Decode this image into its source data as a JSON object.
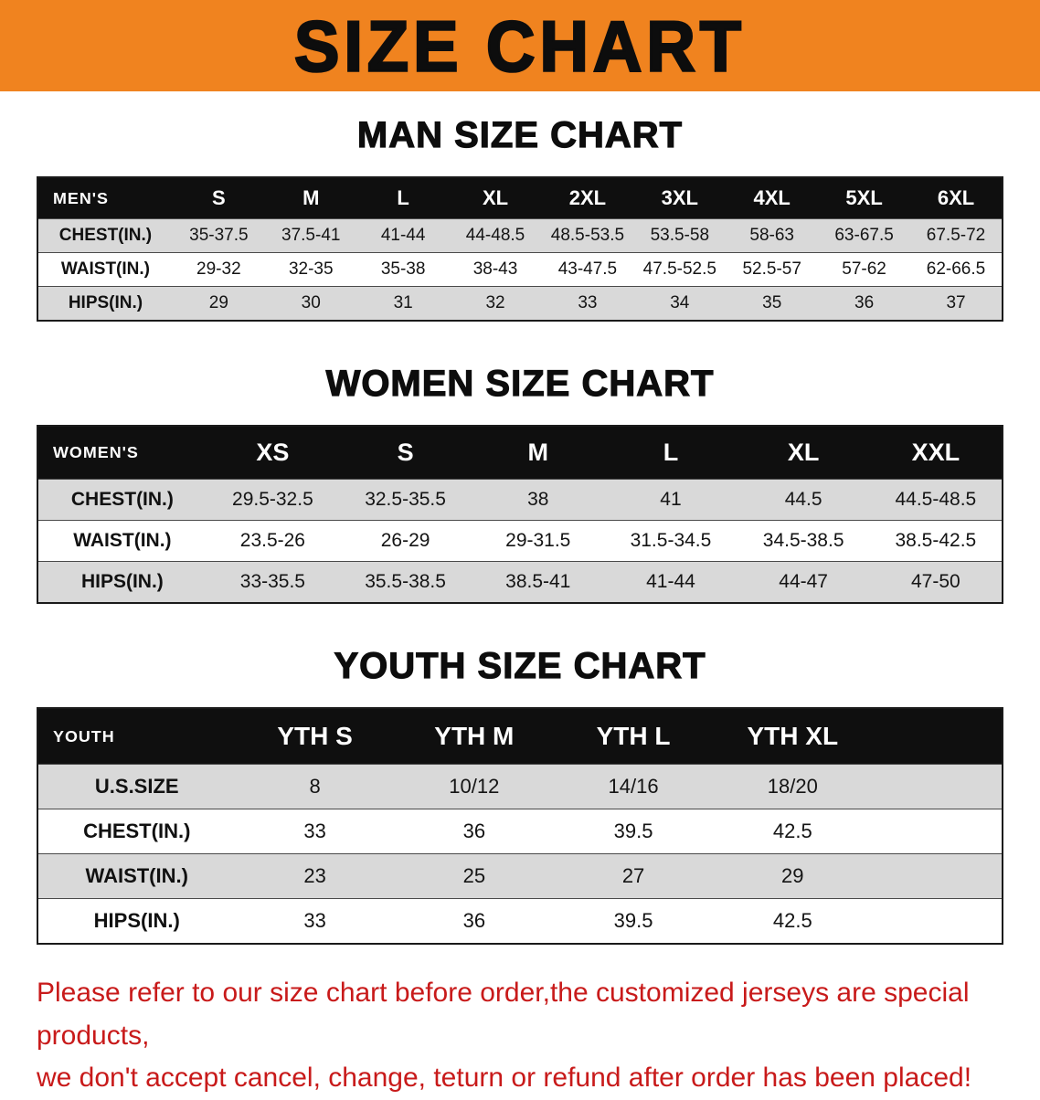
{
  "banner": {
    "title": "SIZE CHART"
  },
  "colors": {
    "banner_bg": "#F0831F",
    "header_bg": "#0f0f0f",
    "stripe": "#d9d9d9",
    "footer_text": "#c81a1a"
  },
  "sections": [
    {
      "heading": "MAN SIZE CHART",
      "table": {
        "label": "MEN'S",
        "columns": [
          "S",
          "M",
          "L",
          "XL",
          "2XL",
          "3XL",
          "4XL",
          "5XL",
          "6XL"
        ],
        "rows": [
          {
            "label": "CHEST(IN.)",
            "values": [
              "35-37.5",
              "37.5-41",
              "41-44",
              "44-48.5",
              "48.5-53.5",
              "53.5-58",
              "58-63",
              "63-67.5",
              "67.5-72"
            ]
          },
          {
            "label": "WAIST(IN.)",
            "values": [
              "29-32",
              "32-35",
              "35-38",
              "38-43",
              "43-47.5",
              "47.5-52.5",
              "52.5-57",
              "57-62",
              "62-66.5"
            ]
          },
          {
            "label": "HIPS(IN.)",
            "values": [
              "29",
              "30",
              "31",
              "32",
              "33",
              "34",
              "35",
              "36",
              "37"
            ]
          }
        ]
      }
    },
    {
      "heading": "WOMEN SIZE CHART",
      "table": {
        "label": "WOMEN'S",
        "columns": [
          "XS",
          "S",
          "M",
          "L",
          "XL",
          "XXL"
        ],
        "rows": [
          {
            "label": "CHEST(IN.)",
            "values": [
              "29.5-32.5",
              "32.5-35.5",
              "38",
              "41",
              "44.5",
              "44.5-48.5"
            ]
          },
          {
            "label": "WAIST(IN.)",
            "values": [
              "23.5-26",
              "26-29",
              "29-31.5",
              "31.5-34.5",
              "34.5-38.5",
              "38.5-42.5"
            ]
          },
          {
            "label": "HIPS(IN.)",
            "values": [
              "33-35.5",
              "35.5-38.5",
              "38.5-41",
              "41-44",
              "44-47",
              "47-50"
            ]
          }
        ]
      }
    },
    {
      "heading": "YOUTH SIZE CHART",
      "table": {
        "label": "YOUTH",
        "columns": [
          "YTH S",
          "YTH M",
          "YTH L",
          "YTH XL"
        ],
        "rows": [
          {
            "label": "U.S.SIZE",
            "values": [
              "8",
              "10/12",
              "14/16",
              "18/20"
            ]
          },
          {
            "label": "CHEST(IN.)",
            "values": [
              "33",
              "36",
              "39.5",
              "42.5"
            ]
          },
          {
            "label": "WAIST(IN.)",
            "values": [
              "23",
              "25",
              "27",
              "29"
            ]
          },
          {
            "label": "HIPS(IN.)",
            "values": [
              "33",
              "36",
              "39.5",
              "42.5"
            ]
          }
        ]
      }
    }
  ],
  "footer": {
    "lines": [
      "Please refer to our size chart before order,the customized jerseys are special products,",
      "we don't accept cancel, change, teturn or refund after order has been placed!"
    ]
  }
}
